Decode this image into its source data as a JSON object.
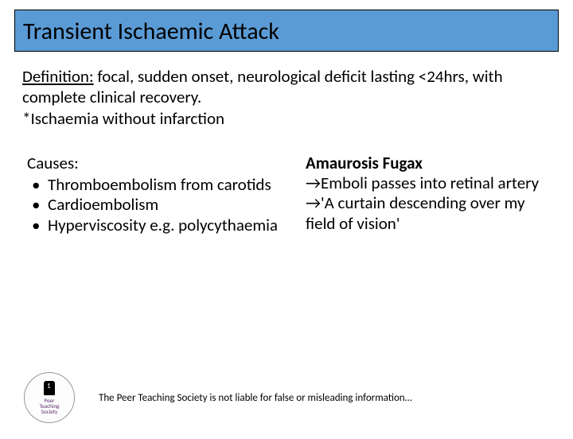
{
  "title": "Transient Ischaemic Attack",
  "definition": {
    "label": "Definition:",
    "line1": " focal, sudden onset, neurological deficit lasting <24hrs, with complete clinical recovery.",
    "line2": "*Ischaemia without infarction"
  },
  "left": {
    "heading": "Causes:",
    "items": [
      "Thromboembolism from carotids",
      "Cardioembolism",
      "Hyperviscosity e.g. polycythaemia"
    ]
  },
  "right": {
    "heading": "Amaurosis Fugax",
    "lines": [
      "→Emboli passes into retinal artery",
      "→'A curtain descending over my field of vision'"
    ]
  },
  "logo": {
    "line1": "Peer",
    "line2": "Teaching",
    "line3": "Society"
  },
  "disclaimer": "The Peer Teaching Society is not liable for false or misleading information…",
  "colors": {
    "title_bg": "#5b9bd5",
    "text": "#000000",
    "background": "#ffffff"
  }
}
